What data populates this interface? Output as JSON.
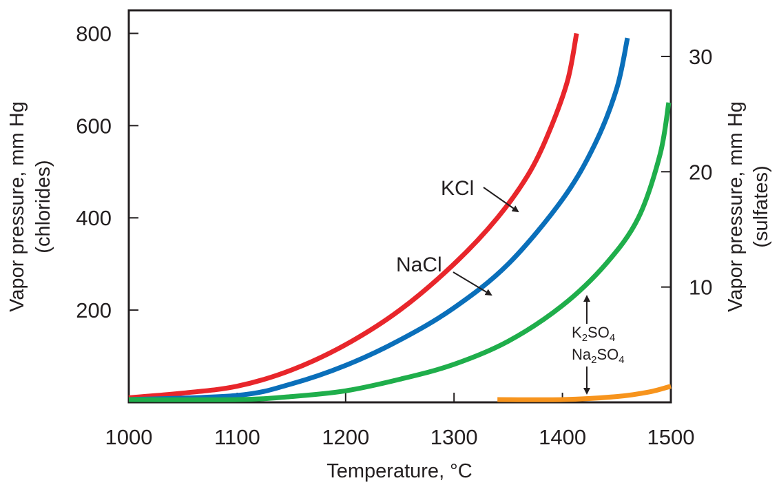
{
  "chart_data": {
    "type": "line",
    "xlabel": "Temperature, °C",
    "ylabel_left": [
      "Vapor pressure, mm Hg",
      "(chlorides)"
    ],
    "ylabel_right": [
      "Vapor pressure, mm Hg",
      "(sulfates)"
    ],
    "xlim": [
      1000,
      1500
    ],
    "xticks": [
      "1000",
      "1100",
      "1200",
      "1300",
      "1400",
      "1500"
    ],
    "ylim_left": [
      0,
      850
    ],
    "yticks_left": [
      "200",
      "400",
      "600",
      "800"
    ],
    "ylim_right": [
      0,
      34
    ],
    "yticks_right": [
      "10",
      "20",
      "30"
    ],
    "grid": false,
    "legend": "none (direct labels)",
    "series": [
      {
        "name": "KCl",
        "axis": "left",
        "color": "#e8262b",
        "x": [
          1000,
          1050,
          1100,
          1150,
          1200,
          1250,
          1300,
          1340,
          1370,
          1390,
          1405,
          1413
        ],
        "y": [
          10,
          20,
          35,
          70,
          125,
          200,
          300,
          400,
          500,
          600,
          700,
          800
        ]
      },
      {
        "name": "NaCl",
        "axis": "left",
        "color": "#0a6fba",
        "x": [
          1000,
          1100,
          1150,
          1200,
          1250,
          1300,
          1350,
          1400,
          1430,
          1450,
          1460
        ],
        "y": [
          3,
          15,
          40,
          80,
          135,
          205,
          300,
          440,
          560,
          680,
          790
        ]
      },
      {
        "name": "K₂SO₄",
        "axis": "right",
        "color": "#1fae4b",
        "x": [
          1000,
          1100,
          1150,
          1200,
          1250,
          1300,
          1350,
          1400,
          1440,
          1470,
          1490,
          1498
        ],
        "y": [
          0,
          0.1,
          0.5,
          1,
          2,
          3.3,
          5.3,
          8.4,
          12,
          16,
          21.5,
          26
        ]
      },
      {
        "name": "Na₂SO₄",
        "axis": "right",
        "color": "#f7941d",
        "x": [
          1340,
          1400,
          1450,
          1480,
          1500
        ],
        "y": [
          0,
          0.2,
          0.5,
          0.9,
          1.4
        ]
      }
    ],
    "annotations": [
      {
        "text": "KCl",
        "series": "KCl",
        "point": [
          1360,
          420
        ]
      },
      {
        "text": "NaCl",
        "series": "NaCl",
        "point": [
          1385,
          210
        ]
      },
      {
        "text_main": "K",
        "sub": "2",
        "text_rest": "SO",
        "sub2": "4",
        "series": "K₂SO₄",
        "point": [
          1420,
          11
        ]
      },
      {
        "text_main": "Na",
        "sub": "2",
        "text_rest": "SO",
        "sub2": "4",
        "series": "Na₂SO₄",
        "point": [
          1420,
          0.3
        ]
      }
    ]
  }
}
